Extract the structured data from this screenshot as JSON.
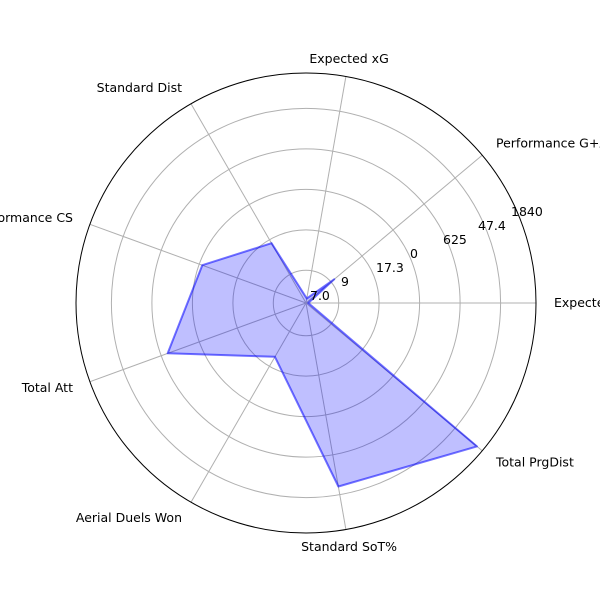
{
  "chart_data": {
    "type": "radar",
    "title": "",
    "axes": [
      "Expected xG",
      "Performance G+A",
      "Expected xG",
      "Standard Dist",
      "Performance CS",
      "Total Att",
      "Aerial Duels Won",
      "Standard SoT%",
      "Total PrgDist"
    ],
    "values": [
      0.01,
      0.16,
      0.02,
      0.3,
      0.48,
      0.64,
      0.27,
      0.81,
      0.97
    ],
    "radial_tick_labels": [
      "7.0",
      "9",
      "17.3",
      "0",
      "625",
      "47.4",
      "1840"
    ],
    "grid": true,
    "colors": {
      "fill": "#0000ff",
      "fill_opacity": 0.25,
      "stroke": "#0000ff",
      "stroke_opacity": 0.55,
      "grid": "#b0b0b0",
      "frame": "#000000"
    }
  }
}
